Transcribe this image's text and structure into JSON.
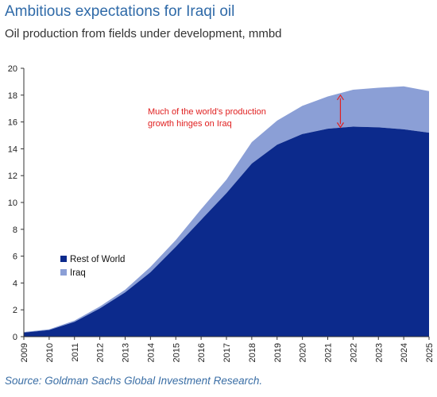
{
  "header": {
    "title": "Ambitious expectations for Iraqi oil",
    "subtitle": "Oil production from fields under development, mmbd"
  },
  "footer": {
    "source": "Source: Goldman Sachs Global Investment Research."
  },
  "chart_data": {
    "type": "area",
    "stacked": true,
    "x": [
      2009,
      2010,
      2011,
      2012,
      2013,
      2014,
      2015,
      2016,
      2017,
      2018,
      2019,
      2020,
      2021,
      2022,
      2023,
      2024,
      2025
    ],
    "series": [
      {
        "name": "Rest of World",
        "color": "#0c2a8c",
        "values": [
          0.3,
          0.5,
          1.1,
          2.1,
          3.3,
          4.8,
          6.7,
          8.7,
          10.7,
          12.9,
          14.3,
          15.1,
          15.5,
          15.65,
          15.6,
          15.45,
          15.2
        ]
      },
      {
        "name": "Iraq",
        "color": "#8b9fd6",
        "values": [
          0.05,
          0.05,
          0.1,
          0.15,
          0.2,
          0.4,
          0.5,
          0.8,
          1.0,
          1.6,
          1.8,
          2.1,
          2.4,
          2.75,
          2.95,
          3.2,
          3.1
        ]
      }
    ],
    "xlim": [
      2009,
      2025
    ],
    "ylim": [
      0,
      20
    ],
    "yticks": [
      0,
      2,
      4,
      6,
      8,
      10,
      12,
      14,
      16,
      18,
      20
    ],
    "xticks": [
      "2009",
      "2010",
      "2011",
      "2012",
      "2013",
      "2014",
      "2015",
      "2016",
      "2017",
      "2018",
      "2019",
      "2020",
      "2021",
      "2022",
      "2023",
      "2024",
      "2025"
    ],
    "legend_position": "lower-left",
    "grid": false,
    "annotation": {
      "lines": [
        "Much of the world's production",
        "growth hinges on Iraq"
      ],
      "color": "#e02020",
      "arrow_x": 2021.5,
      "arrow_from": 15.6,
      "arrow_to": 18.0
    }
  }
}
